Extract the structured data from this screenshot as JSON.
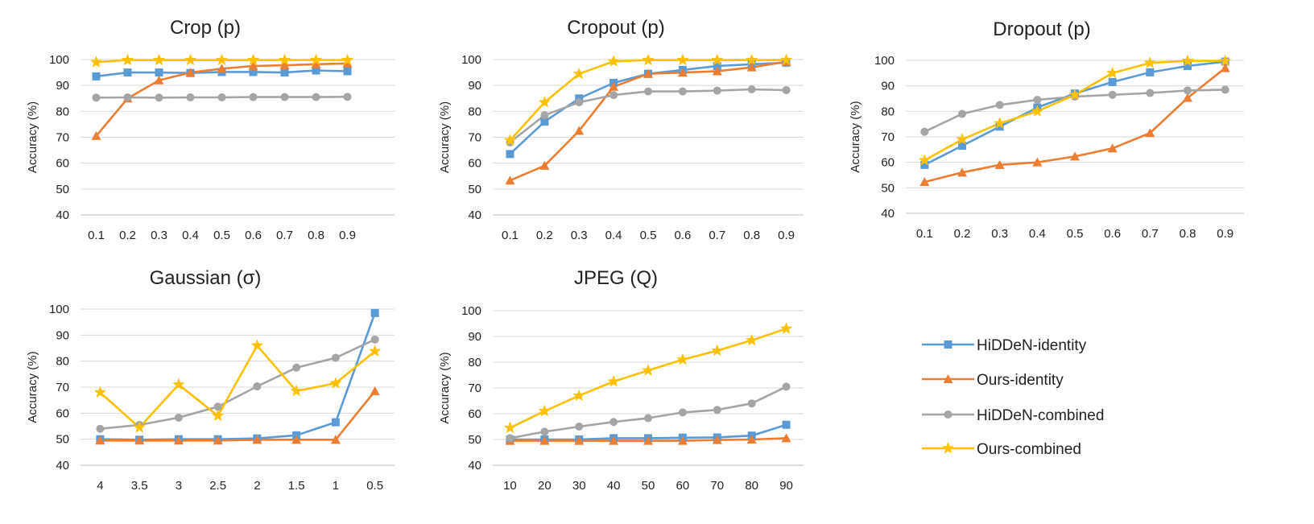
{
  "legend": [
    {
      "name": "HiDDeN-identity",
      "color": "#5B9BD5",
      "marker": "square"
    },
    {
      "name": "Ours-identity",
      "color": "#ED7D31",
      "marker": "triangle"
    },
    {
      "name": "HiDDeN-combined",
      "color": "#A5A5A5",
      "marker": "circle"
    },
    {
      "name": "Ours-combined",
      "color": "#FFC000",
      "marker": "star"
    }
  ],
  "chart_data": [
    {
      "type": "line",
      "title": "Crop (p)",
      "ylabel": "Accuracy (%)",
      "xlabel": "",
      "categories": [
        "0.1",
        "0.2",
        "0.3",
        "0.4",
        "0.5",
        "0.6",
        "0.7",
        "0.8",
        "0.9"
      ],
      "extra_slot": true,
      "ylim": [
        40,
        100
      ],
      "yticks": [
        40,
        50,
        60,
        70,
        80,
        90,
        100
      ],
      "grid": true,
      "series": [
        {
          "name": "HiDDeN-identity",
          "values": [
            93.5,
            95,
            95,
            94.8,
            95.2,
            95.2,
            95,
            95.8,
            95.5
          ]
        },
        {
          "name": "Ours-identity",
          "values": [
            70.5,
            85,
            92,
            95,
            96.5,
            97.5,
            97.8,
            98.2,
            98.5
          ]
        },
        {
          "name": "HiDDeN-combined",
          "values": [
            85.3,
            85.4,
            85.3,
            85.4,
            85.4,
            85.5,
            85.5,
            85.5,
            85.6
          ]
        },
        {
          "name": "Ours-combined",
          "values": [
            99,
            99.8,
            99.8,
            99.8,
            99.8,
            99.8,
            99.8,
            99.8,
            99.8
          ]
        }
      ]
    },
    {
      "type": "line",
      "title": "Cropout (p)",
      "ylabel": "Accuracy (%)",
      "xlabel": "",
      "categories": [
        "0.1",
        "0.2",
        "0.3",
        "0.4",
        "0.5",
        "0.6",
        "0.7",
        "0.8",
        "0.9"
      ],
      "ylim": [
        40,
        100
      ],
      "yticks": [
        40,
        50,
        60,
        70,
        80,
        90,
        100
      ],
      "grid": true,
      "series": [
        {
          "name": "HiDDeN-identity",
          "values": [
            63.5,
            76,
            85,
            91,
            94.5,
            96,
            97.5,
            98.2,
            98.8
          ]
        },
        {
          "name": "Ours-identity",
          "values": [
            53.3,
            59,
            72.5,
            89.5,
            94.5,
            95,
            95.5,
            97,
            99.2
          ]
        },
        {
          "name": "HiDDeN-combined",
          "values": [
            68,
            78.5,
            83.5,
            86.3,
            87.7,
            87.7,
            88,
            88.5,
            88.2
          ]
        },
        {
          "name": "Ours-combined",
          "values": [
            68.8,
            83.5,
            94.5,
            99.3,
            99.8,
            99.8,
            99.8,
            99.8,
            99.8
          ]
        }
      ]
    },
    {
      "type": "line",
      "title": "Dropout (p)",
      "ylabel": "Accuracy (%)",
      "xlabel": "",
      "categories": [
        "0.1",
        "0.2",
        "0.3",
        "0.4",
        "0.5",
        "0.6",
        "0.7",
        "0.8",
        "0.9"
      ],
      "ylim": [
        40,
        100
      ],
      "yticks": [
        40,
        50,
        60,
        70,
        80,
        90,
        100
      ],
      "grid": true,
      "series": [
        {
          "name": "HiDDeN-identity",
          "values": [
            59,
            66.5,
            74,
            81.5,
            87,
            91.5,
            95.3,
            97.8,
            99.5
          ]
        },
        {
          "name": "Ours-identity",
          "values": [
            52.3,
            56,
            59,
            60,
            62.3,
            65.5,
            71.5,
            85.3,
            97
          ]
        },
        {
          "name": "HiDDeN-combined",
          "values": [
            72,
            79,
            82.5,
            84.5,
            85.8,
            86.5,
            87.2,
            88.2,
            88.5
          ]
        },
        {
          "name": "Ours-combined",
          "values": [
            60.8,
            69,
            75.3,
            80,
            86.5,
            95,
            99,
            99.8,
            99.8
          ]
        }
      ]
    },
    {
      "type": "line",
      "title": "Gaussian (σ)",
      "ylabel": "Accuracy (%)",
      "xlabel": "",
      "categories": [
        "4",
        "3.5",
        "3",
        "2.5",
        "2",
        "1.5",
        "1",
        "0.5"
      ],
      "ylim": [
        40,
        100
      ],
      "yticks": [
        40,
        50,
        60,
        70,
        80,
        90,
        100
      ],
      "grid": true,
      "series": [
        {
          "name": "HiDDeN-identity",
          "values": [
            50,
            49.8,
            50,
            50,
            50.3,
            51.5,
            56.5,
            98.5
          ]
        },
        {
          "name": "Ours-identity",
          "values": [
            49.5,
            49.5,
            49.5,
            49.5,
            49.8,
            49.8,
            49.8,
            68.5
          ]
        },
        {
          "name": "HiDDeN-combined",
          "values": [
            54,
            55.5,
            58.3,
            62.5,
            70.3,
            77.5,
            81.3,
            88.3
          ]
        },
        {
          "name": "Ours-combined",
          "values": [
            68,
            54.5,
            71,
            59,
            86,
            68.5,
            71.5,
            83.8
          ]
        }
      ]
    },
    {
      "type": "line",
      "title": "JPEG (Q)",
      "ylabel": "Accuracy (%)",
      "xlabel": "",
      "categories": [
        "10",
        "20",
        "30",
        "40",
        "50",
        "60",
        "70",
        "80",
        "90"
      ],
      "ylim": [
        40,
        100
      ],
      "yticks": [
        40,
        50,
        60,
        70,
        80,
        90,
        100
      ],
      "grid": true,
      "series": [
        {
          "name": "HiDDeN-identity",
          "values": [
            50,
            50,
            50,
            50.5,
            50.5,
            50.7,
            50.8,
            51.5,
            55.7
          ]
        },
        {
          "name": "Ours-identity",
          "values": [
            49.5,
            49.5,
            49.5,
            49.5,
            49.5,
            49.5,
            49.8,
            50,
            50.5
          ]
        },
        {
          "name": "HiDDeN-combined",
          "values": [
            50.5,
            53,
            55,
            56.8,
            58.3,
            60.5,
            61.5,
            64,
            70.5
          ]
        },
        {
          "name": "Ours-combined",
          "values": [
            54.5,
            61,
            67,
            72.5,
            76.8,
            81,
            84.5,
            88.5,
            93
          ]
        }
      ]
    }
  ]
}
